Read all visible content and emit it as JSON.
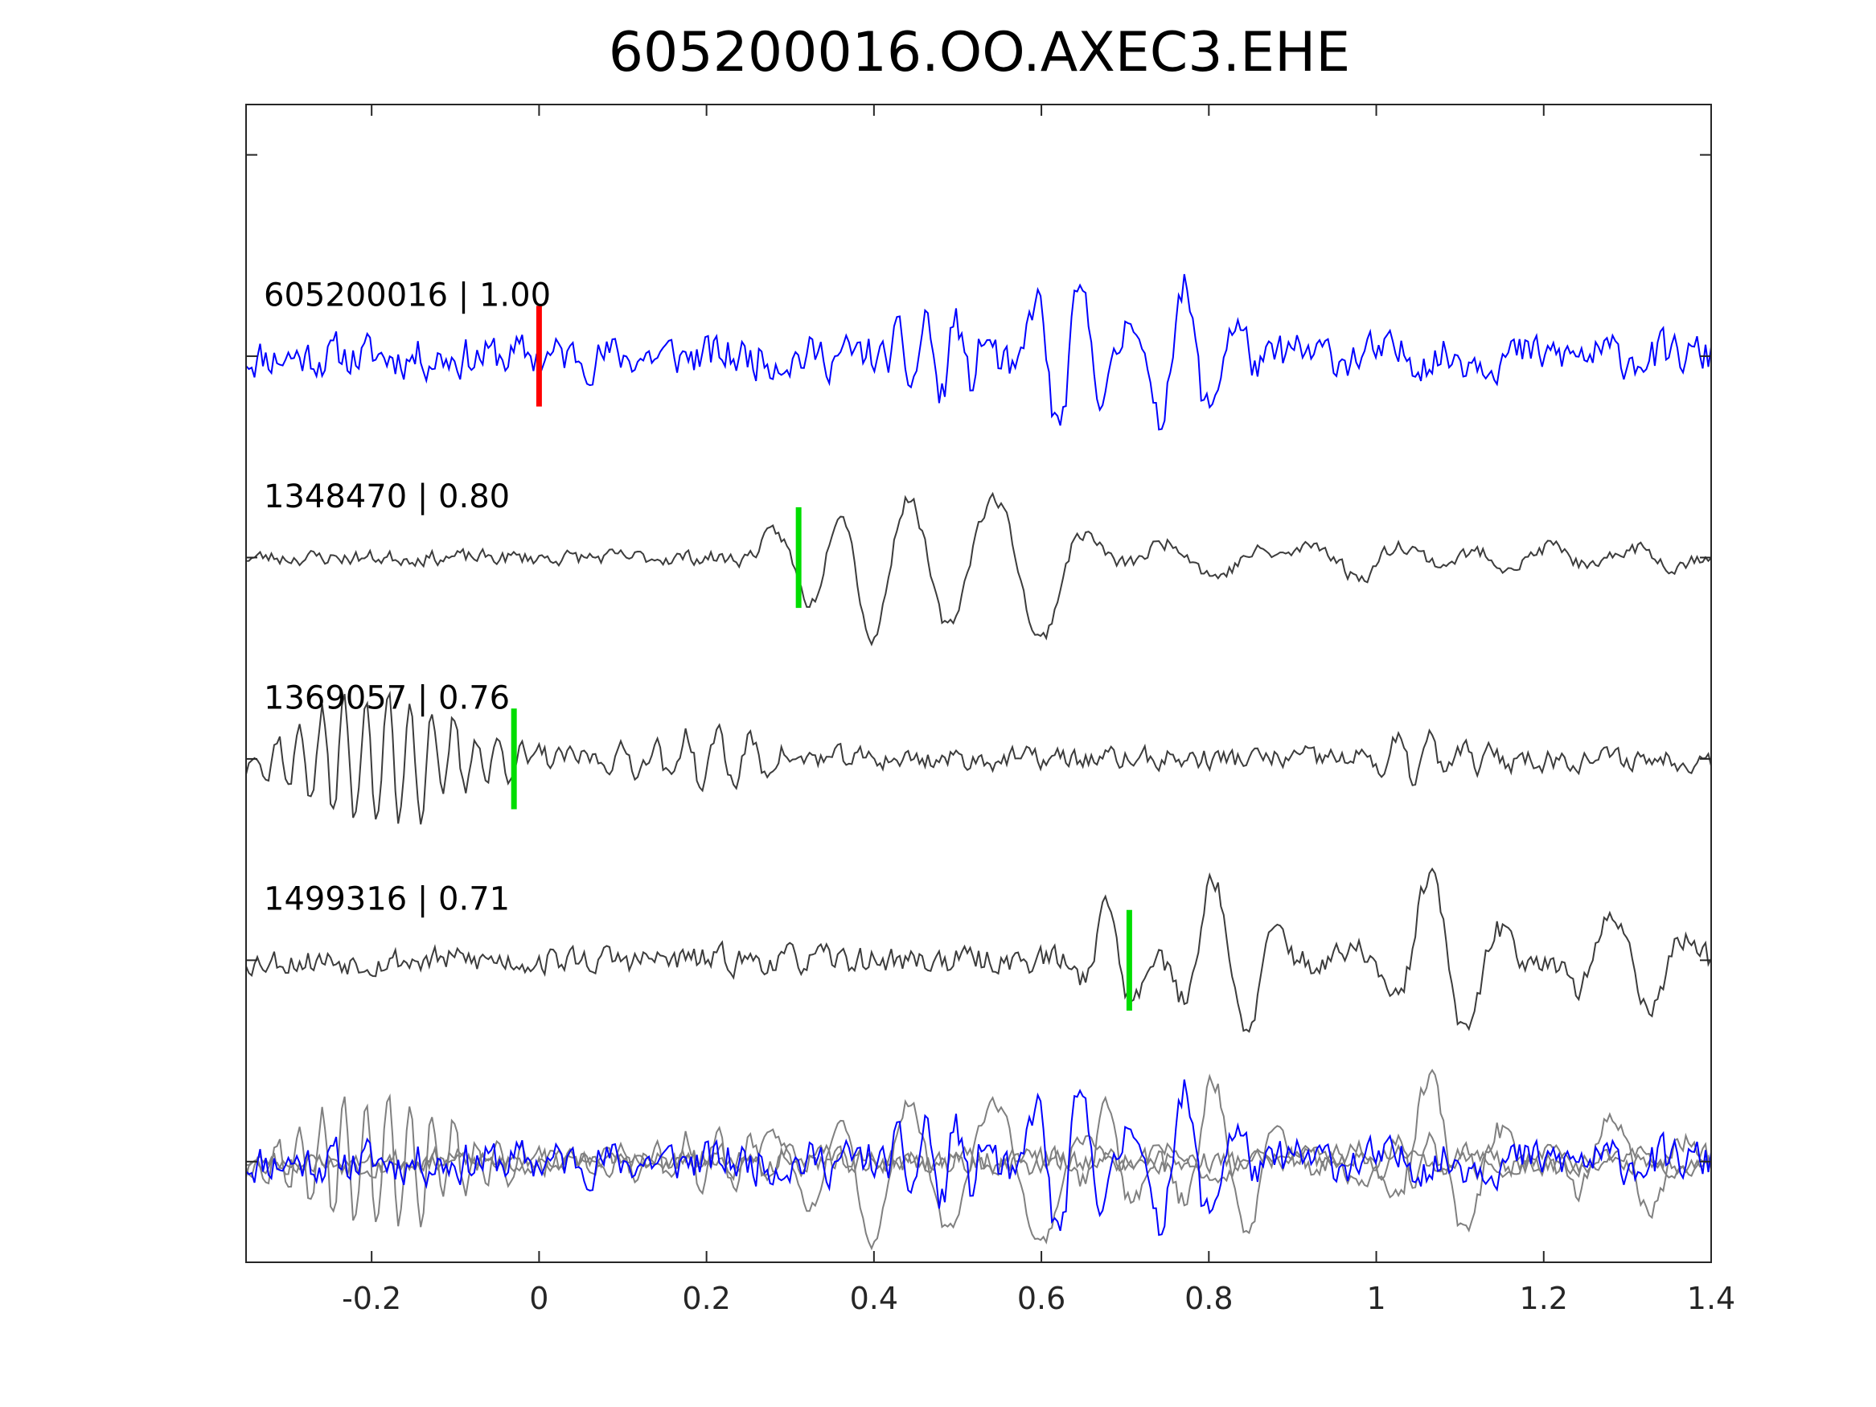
{
  "chart_data": {
    "type": "line",
    "title": "605200016.OO.AXEC3.EHE",
    "xlim": [
      -0.35,
      1.4
    ],
    "xticks": [
      -0.2,
      0,
      0.2,
      0.4,
      0.6,
      0.8,
      1,
      1.2,
      1.4
    ],
    "xtick_labels": [
      "-0.2",
      "0",
      "0.2",
      "0.4",
      "0.6",
      "0.8",
      "1",
      "1.2",
      "1.4"
    ],
    "ylim": [
      -5.5,
      0.25
    ],
    "yticks": [
      -5,
      -4,
      -3,
      -2,
      -1,
      0
    ],
    "grid": false,
    "colors": {
      "master": "#0000ff",
      "match": "#3c3c3c",
      "overlay_match": "#808080",
      "master_pick": "#ff0000",
      "match_pick": "#00dd00"
    },
    "series": [
      {
        "name": "605200016 | 1.00",
        "color": "#0000ff",
        "offset": -1,
        "pick_time": 0.0,
        "pick_color": "#ff0000",
        "seed": 11,
        "noise": 0.17,
        "arrivals": [
          [
            0.48,
            0.22,
            0.05,
            28
          ],
          [
            0.62,
            0.38,
            0.05,
            18
          ],
          [
            0.74,
            0.3,
            0.05,
            16
          ],
          [
            0.8,
            0.2,
            0.06,
            15
          ]
        ]
      },
      {
        "name": "1348470 | 0.80",
        "color": "#3c3c3c",
        "offset": -2,
        "pick_time": 0.31,
        "pick_color": "#00dd00",
        "seed": 23,
        "noise": 0.06,
        "arrivals": [
          [
            0.32,
            0.24,
            0.05,
            9
          ],
          [
            0.39,
            0.42,
            0.05,
            10
          ],
          [
            0.48,
            0.33,
            0.05,
            9
          ],
          [
            0.59,
            0.42,
            0.06,
            8
          ],
          [
            0.8,
            0.1,
            0.1,
            8
          ],
          [
            0.97,
            0.1,
            0.1,
            9
          ],
          [
            1.25,
            0.06,
            0.15,
            10
          ]
        ]
      },
      {
        "name": "1369057 | 0.76",
        "color": "#3c3c3c",
        "offset": -3,
        "pick_time": -0.03,
        "pick_color": "#00dd00",
        "seed": 37,
        "noise": 0.09,
        "arrivals": [
          [
            -0.19,
            0.33,
            0.12,
            38
          ],
          [
            0.2,
            0.15,
            0.08,
            26
          ],
          [
            1.05,
            0.1,
            0.08,
            26
          ]
        ]
      },
      {
        "name": "1499316 | 0.71",
        "color": "#3c3c3c",
        "offset": -4,
        "pick_time": 0.705,
        "pick_color": "#00dd00",
        "seed": 53,
        "noise": 0.11,
        "arrivals": [
          [
            0.69,
            0.3,
            0.04,
            14
          ],
          [
            0.82,
            0.45,
            0.06,
            12
          ],
          [
            1.08,
            0.45,
            0.07,
            11
          ],
          [
            1.3,
            0.25,
            0.08,
            11
          ]
        ]
      }
    ],
    "overlay": {
      "offset": -5,
      "note_series": "all"
    }
  }
}
